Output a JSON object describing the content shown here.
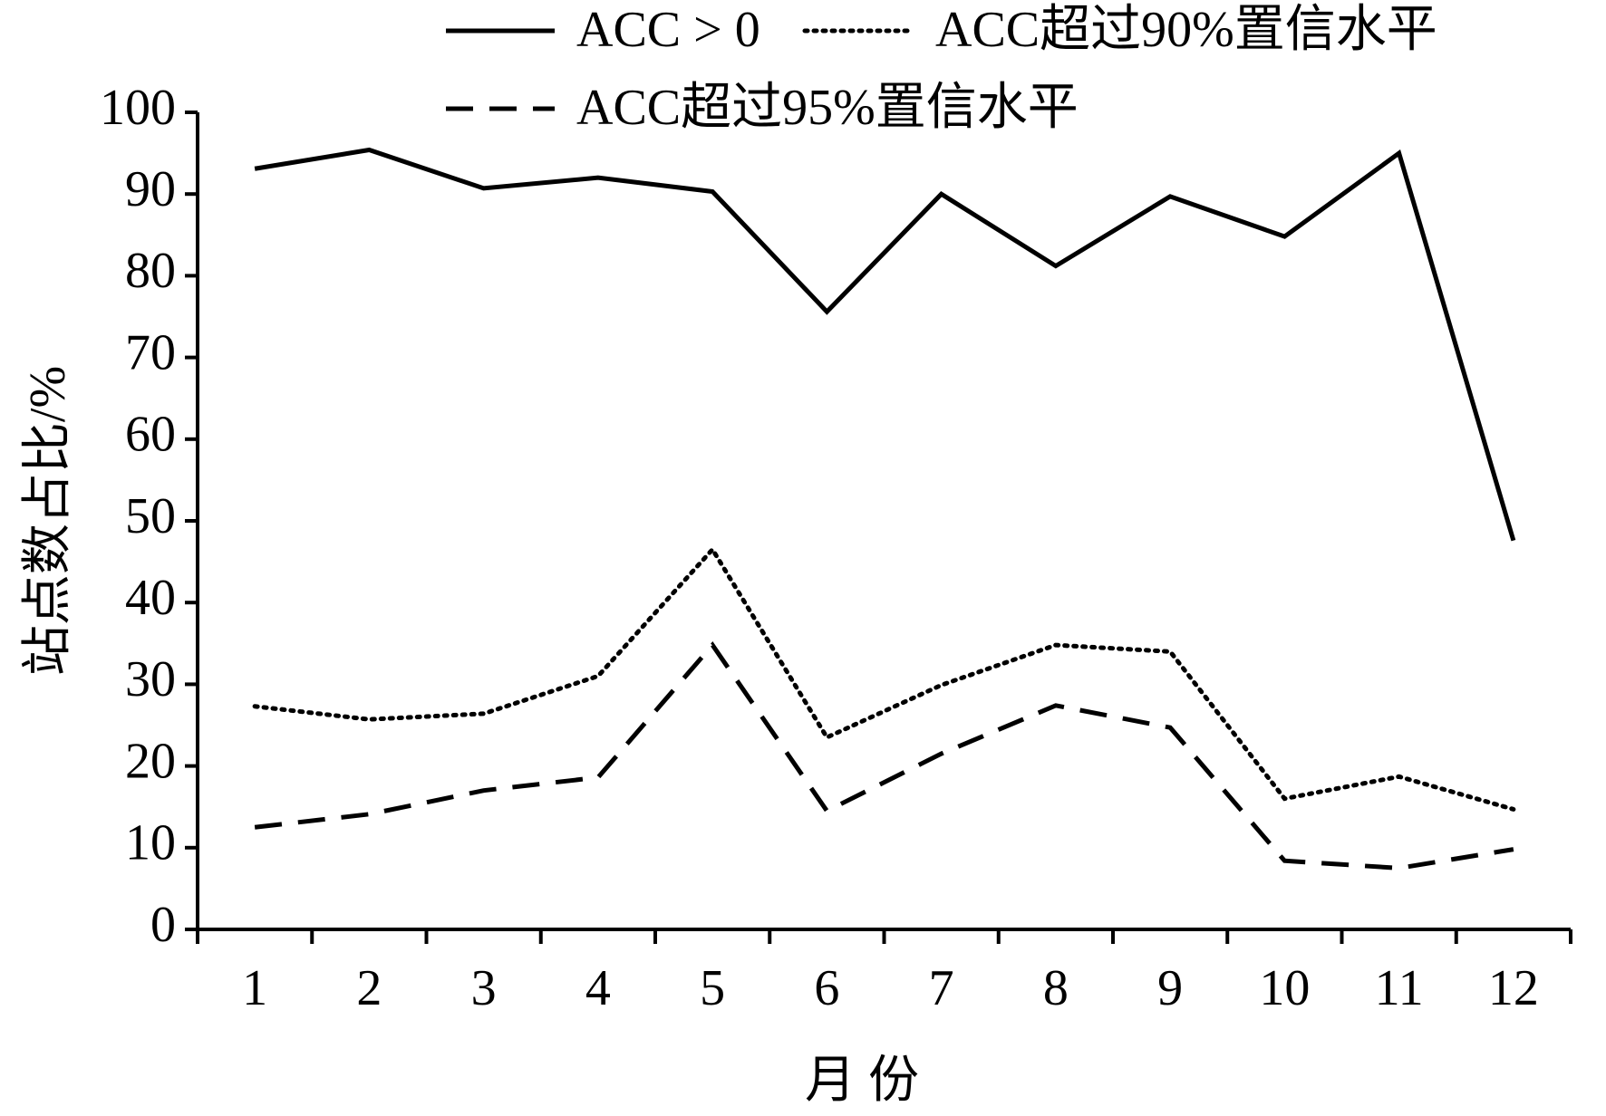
{
  "chart_data": {
    "type": "line",
    "x_label": "月 份",
    "y_label": "站点数占比/%",
    "categories": [
      "1",
      "2",
      "3",
      "4",
      "5",
      "6",
      "7",
      "8",
      "9",
      "10",
      "11",
      "12"
    ],
    "series": [
      {
        "name": "ACC > 0",
        "color": "#000000",
        "style": "solid",
        "values": [
          93.1,
          95.4,
          90.7,
          92.0,
          90.3,
          75.6,
          90.0,
          81.2,
          89.7,
          84.8,
          95.0,
          47.6
        ]
      },
      {
        "name": "ACC超过90%置信水平",
        "color": "#000000",
        "style": "dotted",
        "values": [
          27.3,
          25.7,
          26.4,
          31.0,
          46.5,
          23.5,
          29.9,
          34.8,
          34.0,
          16.0,
          18.7,
          14.7
        ]
      },
      {
        "name": "ACC超过95%置信水平",
        "color": "#000000",
        "style": "dashed",
        "values": [
          12.5,
          14.1,
          17.0,
          18.6,
          34.8,
          14.5,
          21.5,
          27.4,
          24.7,
          8.4,
          7.5,
          9.8
        ]
      }
    ],
    "ylim": [
      0,
      100
    ],
    "yticks": [
      0,
      10,
      20,
      30,
      40,
      50,
      60,
      70,
      80,
      90,
      100
    ],
    "grid": false,
    "legend": "top"
  }
}
